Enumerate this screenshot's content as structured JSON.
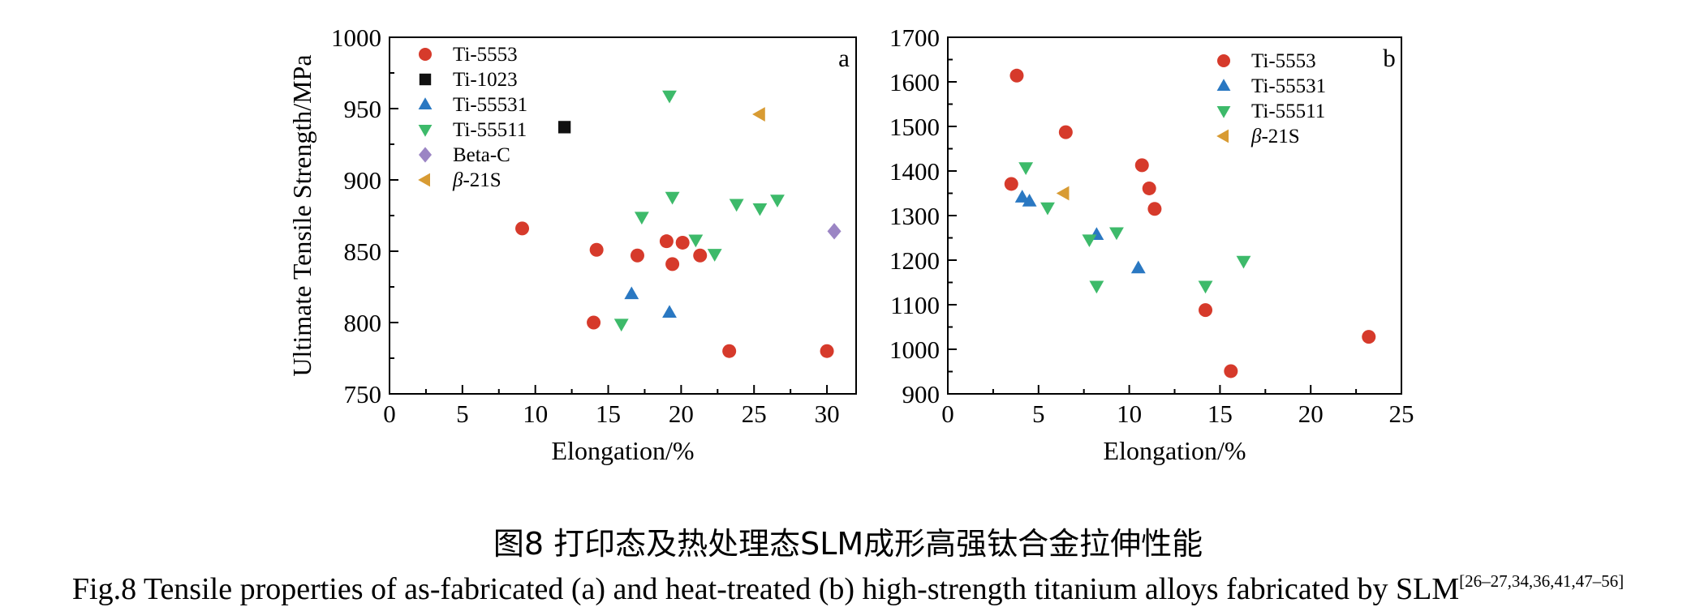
{
  "caption": {
    "chinese": "图8  打印态及热处理态SLM成形高强钛合金拉伸性能",
    "english": "Fig.8  Tensile properties of as-fabricated (a) and heat-treated (b) high-strength titanium alloys fabricated by SLM",
    "refs": "[26–27,34,36,41,47–56]"
  },
  "colors": {
    "Ti-5553": "#d63a2b",
    "Ti-1023": "#111111",
    "Ti-55531": "#2a78c2",
    "Ti-55511": "#3dba6a",
    "Beta-C": "#9b85c4",
    "beta-21S": "#d89b33"
  },
  "chart_data": [
    {
      "panel": "a",
      "type": "scatter",
      "xlabel": "Elongation/%",
      "ylabel": "Ultimate Tensile Strength/MPa",
      "xlim": [
        0,
        32
      ],
      "ylim": [
        750,
        1000
      ],
      "xticks": [
        0,
        5,
        10,
        15,
        20,
        25,
        30
      ],
      "yticks": [
        750,
        800,
        850,
        900,
        950,
        1000
      ],
      "legend_position": "top-left",
      "grid": false,
      "series": [
        {
          "name": "Ti-5553",
          "marker": "circle",
          "points": [
            [
              9.1,
              866
            ],
            [
              14.2,
              851
            ],
            [
              14.0,
              800
            ],
            [
              17.0,
              847
            ],
            [
              19.0,
              857
            ],
            [
              19.4,
              841
            ],
            [
              20.1,
              856
            ],
            [
              21.3,
              847
            ],
            [
              23.3,
              780
            ],
            [
              30.0,
              780
            ]
          ]
        },
        {
          "name": "Ti-1023",
          "marker": "square",
          "points": [
            [
              12.0,
              937
            ]
          ]
        },
        {
          "name": "Ti-55531",
          "marker": "triangle-up",
          "points": [
            [
              16.6,
              820
            ],
            [
              19.2,
              807
            ]
          ]
        },
        {
          "name": "Ti-55511",
          "marker": "triangle-down",
          "points": [
            [
              19.2,
              959
            ],
            [
              19.4,
              888
            ],
            [
              17.3,
              874
            ],
            [
              21.0,
              858
            ],
            [
              22.3,
              848
            ],
            [
              23.8,
              883
            ],
            [
              25.4,
              880
            ],
            [
              26.6,
              886
            ],
            [
              15.9,
              799
            ]
          ]
        },
        {
          "name": "Beta-C",
          "marker": "diamond",
          "points": [
            [
              30.5,
              864
            ]
          ]
        },
        {
          "name": "β-21S",
          "name_prefix": "β",
          "name_suffix": "-21S",
          "marker": "triangle-left",
          "points": [
            [
              25.4,
              946
            ]
          ]
        }
      ]
    },
    {
      "panel": "b",
      "type": "scatter",
      "xlabel": "Elongation/%",
      "ylabel": "",
      "xlim": [
        0,
        25
      ],
      "ylim": [
        900,
        1700
      ],
      "xticks": [
        0,
        5,
        10,
        15,
        20,
        25
      ],
      "yticks": [
        900,
        1000,
        1100,
        1200,
        1300,
        1400,
        1500,
        1600,
        1700
      ],
      "legend_position": "top-right",
      "grid": false,
      "series": [
        {
          "name": "Ti-5553",
          "marker": "circle",
          "points": [
            [
              3.8,
              1614
            ],
            [
              3.5,
              1371
            ],
            [
              6.5,
              1487
            ],
            [
              10.7,
              1413
            ],
            [
              11.1,
              1361
            ],
            [
              11.4,
              1315
            ],
            [
              14.2,
              1088
            ],
            [
              15.6,
              951
            ],
            [
              23.2,
              1028
            ]
          ]
        },
        {
          "name": "Ti-55531",
          "marker": "triangle-up",
          "points": [
            [
              4.1,
              1341
            ],
            [
              4.5,
              1332
            ],
            [
              8.2,
              1257
            ],
            [
              10.5,
              1182
            ]
          ]
        },
        {
          "name": "Ti-55511",
          "marker": "triangle-down",
          "points": [
            [
              4.3,
              1408
            ],
            [
              5.5,
              1318
            ],
            [
              7.8,
              1246
            ],
            [
              8.2,
              1142
            ],
            [
              9.3,
              1262
            ],
            [
              14.2,
              1142
            ],
            [
              16.3,
              1198
            ]
          ]
        },
        {
          "name": "β-21S",
          "name_prefix": "β",
          "name_suffix": "-21S",
          "marker": "triangle-left",
          "points": [
            [
              6.4,
              1350
            ]
          ]
        }
      ]
    }
  ]
}
